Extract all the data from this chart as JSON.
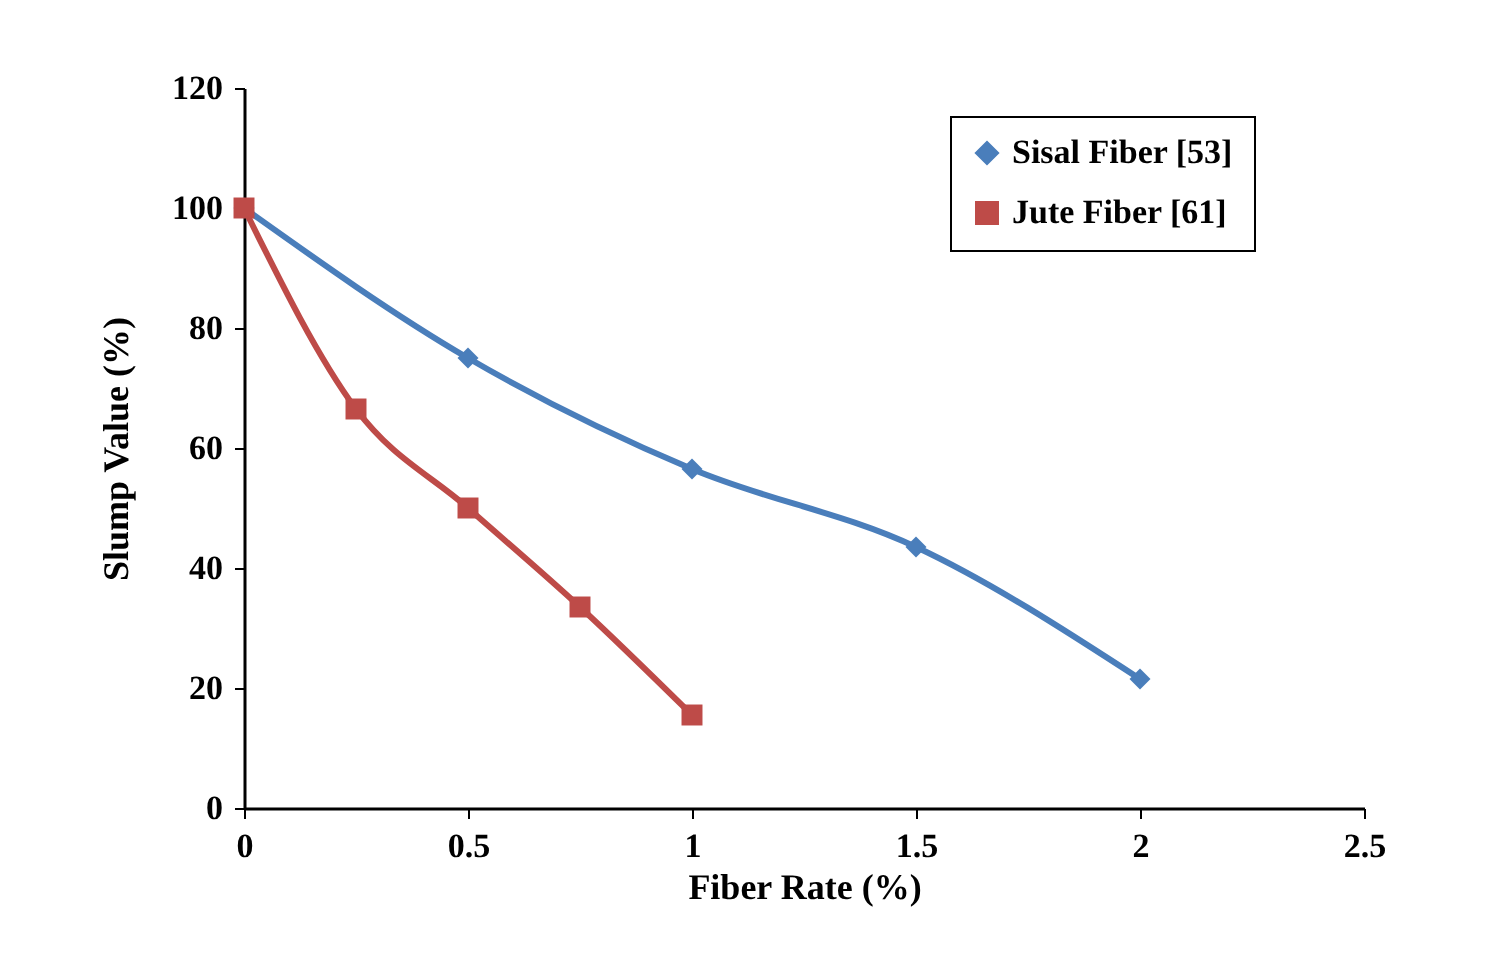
{
  "chart_data": {
    "type": "line",
    "xlabel": "Fiber Rate (%)",
    "ylabel": "Slump Value (%)",
    "xlim": [
      0,
      2.5
    ],
    "xticks": [
      0,
      0.5,
      1,
      1.5,
      2,
      2.5
    ],
    "ylim": [
      0,
      120
    ],
    "yticks": [
      0,
      20,
      40,
      60,
      80,
      100,
      120
    ],
    "grid": false,
    "legend": "top right",
    "line_style": "solid",
    "series": [
      {
        "name": "Sisal Fiber [53]",
        "color": "#4a7ebb",
        "marker": "diamond",
        "x": [
          0,
          0.5,
          1,
          1.5,
          2
        ],
        "values": [
          100,
          75,
          56.5,
          43.5,
          21.5
        ]
      },
      {
        "name": "Jute Fiber [61]",
        "color": "#be4b48",
        "marker": "square",
        "x": [
          0,
          0.25,
          0.5,
          0.75,
          1
        ],
        "values": [
          100,
          66.5,
          50,
          33.5,
          15.5
        ]
      }
    ]
  }
}
